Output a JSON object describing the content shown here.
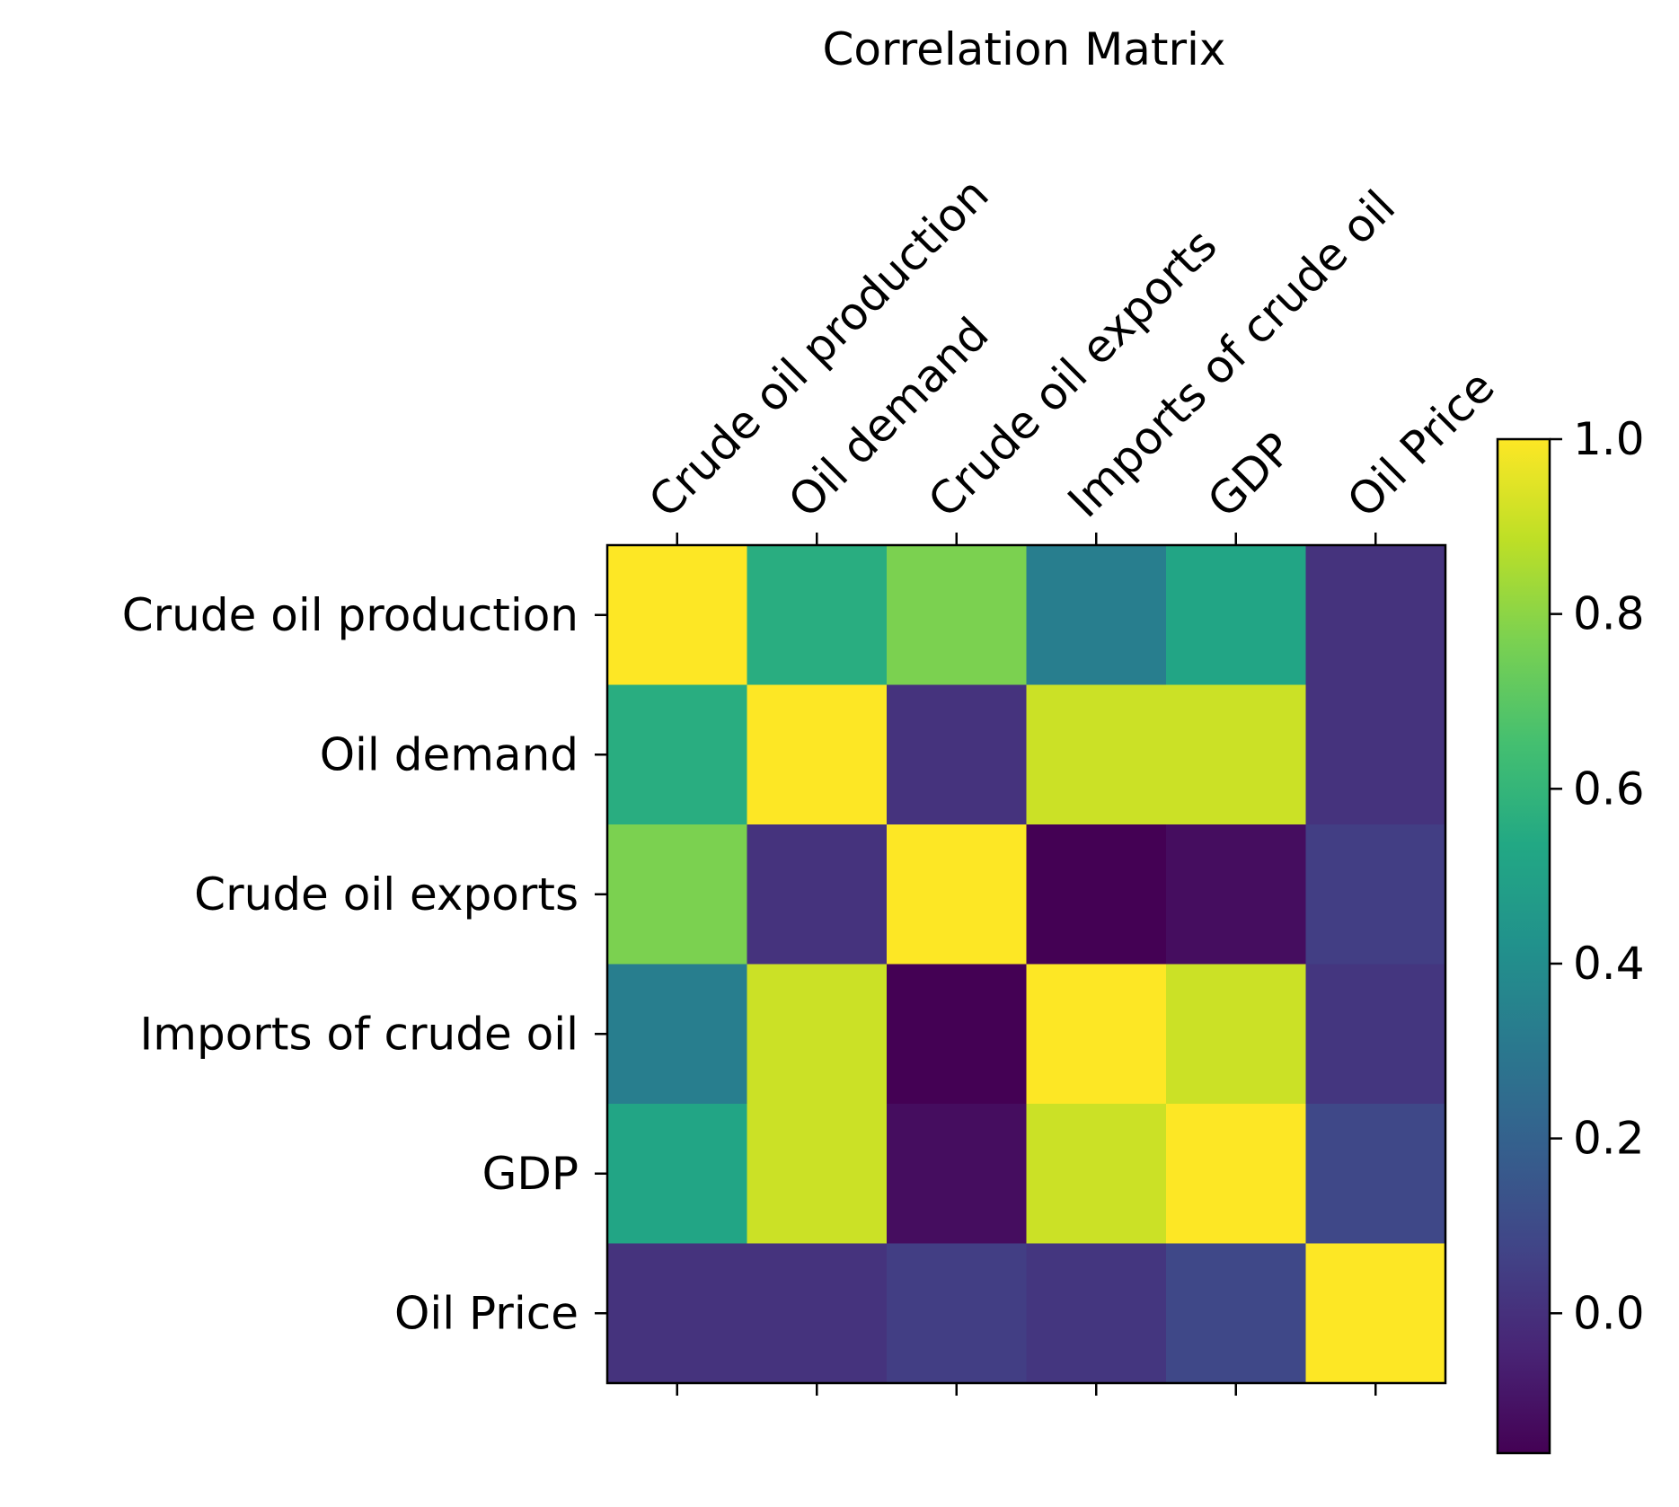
{
  "chart_data": {
    "type": "heatmap",
    "title": "Correlation Matrix",
    "labels": [
      "Crude oil production",
      "Oil demand",
      "Crude oil exports",
      "Imports of crude oil",
      "GDP",
      "Oil Price"
    ],
    "matrix": [
      [
        1.0,
        0.56,
        0.77,
        0.33,
        0.52,
        0.01
      ],
      [
        0.56,
        1.0,
        0.01,
        0.91,
        0.91,
        0.01
      ],
      [
        0.77,
        0.01,
        1.0,
        -0.16,
        -0.12,
        0.05
      ],
      [
        0.33,
        0.91,
        -0.16,
        1.0,
        0.91,
        0.02
      ],
      [
        0.52,
        0.91,
        -0.12,
        0.91,
        1.0,
        0.09
      ],
      [
        0.01,
        0.01,
        0.05,
        0.02,
        0.09,
        1.0
      ]
    ],
    "colormap": "viridis",
    "colorbar": {
      "vmin": -0.16,
      "vmax": 1.0,
      "ticks": [
        0.0,
        0.2,
        0.4,
        0.6,
        0.8,
        1.0
      ],
      "tick_labels": [
        "0.0",
        "0.2",
        "0.4",
        "0.6",
        "0.8",
        "1.0"
      ],
      "placement": "right"
    },
    "x_tick_position": "top, rotated 45°",
    "grid": false
  }
}
